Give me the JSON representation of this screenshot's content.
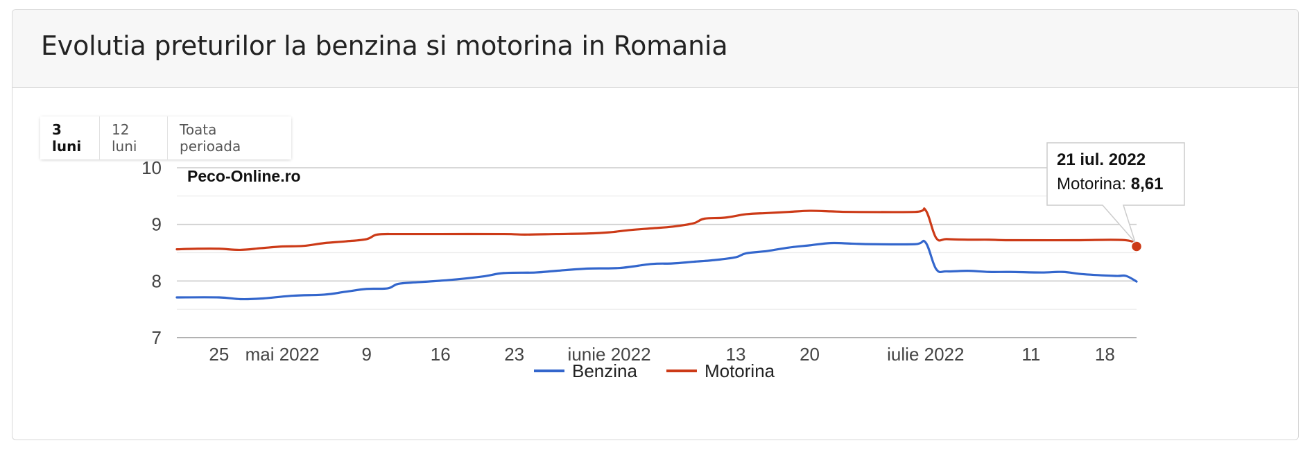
{
  "card": {
    "title": "Evolutia preturilor la benzina si motorina in Romania"
  },
  "range_buttons": [
    {
      "label": "3 luni",
      "active": true
    },
    {
      "label": "12 luni",
      "active": false
    },
    {
      "label": "Toata perioada",
      "active": false
    }
  ],
  "watermark": "Peco-Online.ro",
  "tooltip": {
    "date": "21 iul. 2022",
    "series": "Motorina",
    "separator": ": ",
    "value": "8,61"
  },
  "colors": {
    "benzina": "#3366cc",
    "motorina": "#cc3a17",
    "grid": "#cccccc",
    "minor_grid": "#ebebeb"
  },
  "chart_data": {
    "type": "line",
    "ylim": [
      7,
      10
    ],
    "y_ticks": [
      "7",
      "8",
      "9",
      "10"
    ],
    "x_range": [
      "2022-04-21",
      "2022-07-21"
    ],
    "x_ticks": [
      {
        "label": "25",
        "date": "2022-04-25"
      },
      {
        "label": "mai 2022",
        "date": "2022-05-01"
      },
      {
        "label": "9",
        "date": "2022-05-09"
      },
      {
        "label": "16",
        "date": "2022-05-16"
      },
      {
        "label": "23",
        "date": "2022-05-23"
      },
      {
        "label": "iunie 2022",
        "date": "2022-06-01"
      },
      {
        "label": "13",
        "date": "2022-06-13"
      },
      {
        "label": "20",
        "date": "2022-06-20"
      },
      {
        "label": "iulie 2022",
        "date": "2022-07-01"
      },
      {
        "label": "11",
        "date": "2022-07-11"
      },
      {
        "label": "18",
        "date": "2022-07-18"
      }
    ],
    "series": [
      {
        "name": "Benzina",
        "points": [
          [
            "2022-04-21",
            7.71
          ],
          [
            "2022-04-25",
            7.71
          ],
          [
            "2022-04-27",
            7.68
          ],
          [
            "2022-04-29",
            7.69
          ],
          [
            "2022-05-02",
            7.74
          ],
          [
            "2022-05-05",
            7.76
          ],
          [
            "2022-05-07",
            7.81
          ],
          [
            "2022-05-09",
            7.86
          ],
          [
            "2022-05-11",
            7.87
          ],
          [
            "2022-05-12",
            7.95
          ],
          [
            "2022-05-14",
            7.98
          ],
          [
            "2022-05-17",
            8.02
          ],
          [
            "2022-05-20",
            8.08
          ],
          [
            "2022-05-22",
            8.14
          ],
          [
            "2022-05-25",
            8.15
          ],
          [
            "2022-05-27",
            8.18
          ],
          [
            "2022-05-30",
            8.22
          ],
          [
            "2022-06-02",
            8.23
          ],
          [
            "2022-06-05",
            8.3
          ],
          [
            "2022-06-07",
            8.31
          ],
          [
            "2022-06-09",
            8.34
          ],
          [
            "2022-06-11",
            8.37
          ],
          [
            "2022-06-13",
            8.42
          ],
          [
            "2022-06-14",
            8.49
          ],
          [
            "2022-06-16",
            8.53
          ],
          [
            "2022-06-18",
            8.59
          ],
          [
            "2022-06-20",
            8.63
          ],
          [
            "2022-06-22",
            8.67
          ],
          [
            "2022-06-24",
            8.66
          ],
          [
            "2022-06-26",
            8.65
          ],
          [
            "2022-06-30",
            8.65
          ],
          [
            "2022-07-01",
            8.68
          ],
          [
            "2022-07-02",
            8.21
          ],
          [
            "2022-07-03",
            8.17
          ],
          [
            "2022-07-05",
            8.18
          ],
          [
            "2022-07-07",
            8.16
          ],
          [
            "2022-07-09",
            8.16
          ],
          [
            "2022-07-12",
            8.15
          ],
          [
            "2022-07-14",
            8.16
          ],
          [
            "2022-07-16",
            8.12
          ],
          [
            "2022-07-19",
            8.09
          ],
          [
            "2022-07-20",
            8.09
          ],
          [
            "2022-07-21",
            7.99
          ]
        ]
      },
      {
        "name": "Motorina",
        "points": [
          [
            "2022-04-21",
            8.56
          ],
          [
            "2022-04-23",
            8.57
          ],
          [
            "2022-04-25",
            8.57
          ],
          [
            "2022-04-27",
            8.55
          ],
          [
            "2022-04-29",
            8.58
          ],
          [
            "2022-05-01",
            8.61
          ],
          [
            "2022-05-03",
            8.62
          ],
          [
            "2022-05-05",
            8.67
          ],
          [
            "2022-05-07",
            8.7
          ],
          [
            "2022-05-09",
            8.74
          ],
          [
            "2022-05-10",
            8.82
          ],
          [
            "2022-05-12",
            8.83
          ],
          [
            "2022-05-16",
            8.83
          ],
          [
            "2022-05-22",
            8.83
          ],
          [
            "2022-05-24",
            8.82
          ],
          [
            "2022-05-27",
            8.83
          ],
          [
            "2022-05-30",
            8.84
          ],
          [
            "2022-06-01",
            8.86
          ],
          [
            "2022-06-03",
            8.9
          ],
          [
            "2022-06-05",
            8.93
          ],
          [
            "2022-06-07",
            8.96
          ],
          [
            "2022-06-09",
            9.02
          ],
          [
            "2022-06-10",
            9.1
          ],
          [
            "2022-06-12",
            9.12
          ],
          [
            "2022-06-14",
            9.18
          ],
          [
            "2022-06-16",
            9.2
          ],
          [
            "2022-06-18",
            9.22
          ],
          [
            "2022-06-20",
            9.24
          ],
          [
            "2022-06-22",
            9.23
          ],
          [
            "2022-06-24",
            9.22
          ],
          [
            "2022-06-30",
            9.22
          ],
          [
            "2022-07-01",
            9.25
          ],
          [
            "2022-07-02",
            8.76
          ],
          [
            "2022-07-03",
            8.74
          ],
          [
            "2022-07-05",
            8.73
          ],
          [
            "2022-07-07",
            8.73
          ],
          [
            "2022-07-09",
            8.72
          ],
          [
            "2022-07-15",
            8.72
          ],
          [
            "2022-07-20",
            8.72
          ],
          [
            "2022-07-21",
            8.61
          ]
        ]
      }
    ],
    "legend": [
      "Benzina",
      "Motorina"
    ],
    "legend_position": "bottom",
    "grid": true
  }
}
